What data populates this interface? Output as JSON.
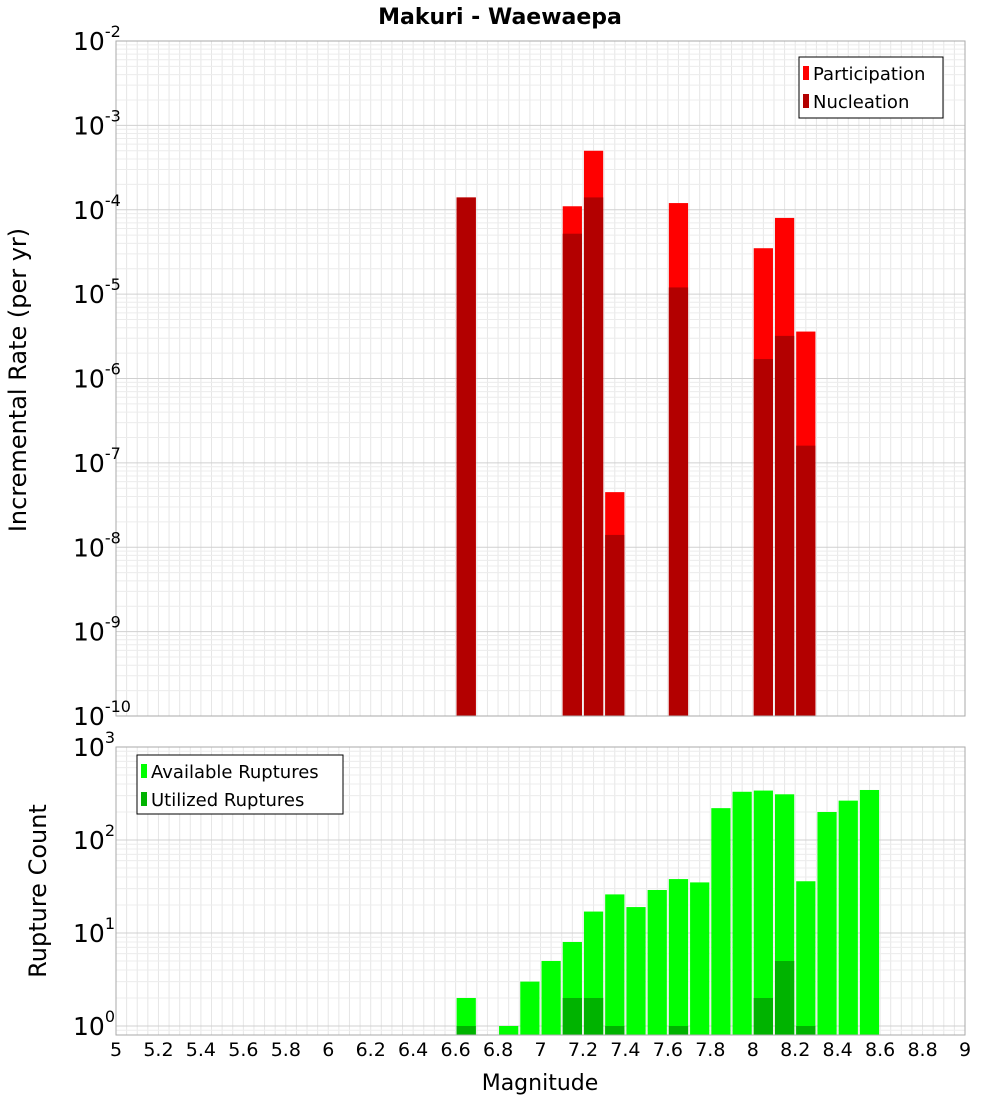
{
  "chart_data": [
    {
      "type": "bar",
      "title": "Makuri - Waewaepa",
      "ylabel": "Incremental Rate (per yr)",
      "yscale": "log",
      "ylim": [
        1e-10,
        0.01
      ],
      "xlim": [
        5,
        9
      ],
      "bar_width": 0.1,
      "grid": true,
      "legend_placement": "top-right",
      "ytick_labels": [
        {
          "base": "10",
          "exp": "-10"
        },
        {
          "base": "10",
          "exp": "-9"
        },
        {
          "base": "10",
          "exp": "-8"
        },
        {
          "base": "10",
          "exp": "-7"
        },
        {
          "base": "10",
          "exp": "-6"
        },
        {
          "base": "10",
          "exp": "-5"
        },
        {
          "base": "10",
          "exp": "-4"
        },
        {
          "base": "10",
          "exp": "-3"
        },
        {
          "base": "10",
          "exp": "-2"
        }
      ],
      "series": [
        {
          "name": "Participation",
          "color": "#ff0000",
          "points": [
            {
              "x": 6.65,
              "y": 0.00014
            },
            {
              "x": 7.15,
              "y": 0.00011
            },
            {
              "x": 7.25,
              "y": 0.0005
            },
            {
              "x": 7.35,
              "y": 4.5e-08
            },
            {
              "x": 7.65,
              "y": 0.00012
            },
            {
              "x": 8.05,
              "y": 3.5e-05
            },
            {
              "x": 8.15,
              "y": 8e-05
            },
            {
              "x": 8.25,
              "y": 3.6e-06
            }
          ]
        },
        {
          "name": "Nucleation",
          "color": "#b30000",
          "points": [
            {
              "x": 6.65,
              "y": 0.00014
            },
            {
              "x": 7.15,
              "y": 5.2e-05
            },
            {
              "x": 7.25,
              "y": 0.00014
            },
            {
              "x": 7.35,
              "y": 1.4e-08
            },
            {
              "x": 7.65,
              "y": 1.2e-05
            },
            {
              "x": 8.05,
              "y": 1.7e-06
            },
            {
              "x": 8.15,
              "y": 3.2e-06
            },
            {
              "x": 8.25,
              "y": 1.6e-07
            }
          ]
        }
      ]
    },
    {
      "type": "bar",
      "xlabel": "Magnitude",
      "ylabel": "Rupture Count",
      "yscale": "log",
      "ylim": [
        0.8,
        1000
      ],
      "xlim": [
        5,
        9
      ],
      "bar_width": 0.1,
      "grid": true,
      "legend_placement": "top-left",
      "xtick_labels": [
        "5",
        "5.2",
        "5.4",
        "5.6",
        "5.8",
        "6",
        "6.2",
        "6.4",
        "6.6",
        "6.8",
        "7",
        "7.2",
        "7.4",
        "7.6",
        "7.8",
        "8",
        "8.2",
        "8.4",
        "8.6",
        "8.8",
        "9"
      ],
      "ytick_labels": [
        {
          "base": "10",
          "exp": "0"
        },
        {
          "base": "10",
          "exp": "1"
        },
        {
          "base": "10",
          "exp": "2"
        },
        {
          "base": "10",
          "exp": "3"
        }
      ],
      "series": [
        {
          "name": "Available Ruptures",
          "color": "#00ff00",
          "points": [
            {
              "x": 6.65,
              "y": 2
            },
            {
              "x": 6.85,
              "y": 1
            },
            {
              "x": 6.95,
              "y": 3
            },
            {
              "x": 7.05,
              "y": 5
            },
            {
              "x": 7.15,
              "y": 8
            },
            {
              "x": 7.25,
              "y": 17
            },
            {
              "x": 7.35,
              "y": 26
            },
            {
              "x": 7.45,
              "y": 19
            },
            {
              "x": 7.55,
              "y": 29
            },
            {
              "x": 7.65,
              "y": 38
            },
            {
              "x": 7.75,
              "y": 35
            },
            {
              "x": 7.85,
              "y": 220
            },
            {
              "x": 7.95,
              "y": 330
            },
            {
              "x": 8.05,
              "y": 340
            },
            {
              "x": 8.15,
              "y": 310
            },
            {
              "x": 8.25,
              "y": 36
            },
            {
              "x": 8.35,
              "y": 200
            },
            {
              "x": 8.45,
              "y": 265
            },
            {
              "x": 8.55,
              "y": 345
            }
          ]
        },
        {
          "name": "Utilized Ruptures",
          "color": "#00b300",
          "points": [
            {
              "x": 6.65,
              "y": 1
            },
            {
              "x": 7.15,
              "y": 2
            },
            {
              "x": 7.25,
              "y": 2
            },
            {
              "x": 7.35,
              "y": 1
            },
            {
              "x": 7.65,
              "y": 1
            },
            {
              "x": 8.05,
              "y": 2
            },
            {
              "x": 8.15,
              "y": 5
            },
            {
              "x": 8.25,
              "y": 1
            }
          ]
        }
      ]
    }
  ]
}
